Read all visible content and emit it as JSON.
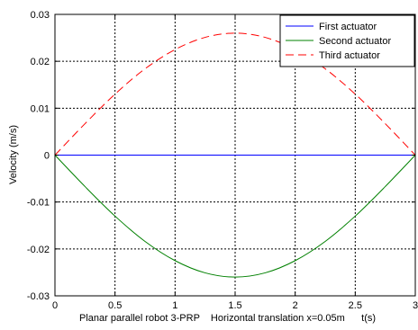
{
  "chart_data": {
    "type": "line",
    "xlabel": "Planar parallel robot 3-PRP    Horizontal translation x=0.05m      t(s)",
    "ylabel": "Velocity (m/s)",
    "xlim": [
      0,
      3
    ],
    "ylim": [
      -0.03,
      0.03
    ],
    "x_ticks": [
      0,
      0.5,
      1,
      1.5,
      2,
      2.5,
      3
    ],
    "x_tick_labels": [
      "0",
      "0.5",
      "1",
      "1.5",
      "2",
      "2.5",
      "3"
    ],
    "y_ticks": [
      0.03,
      0.02,
      0.01,
      0,
      -0.01,
      -0.02,
      -0.03
    ],
    "y_tick_labels": [
      "0.03",
      "0.02",
      "0.01",
      "0",
      "-0.01",
      "-0.02",
      "-0.03"
    ],
    "grid": true,
    "legend_position": "top-right",
    "x": [
      0,
      0.25,
      0.5,
      0.75,
      1,
      1.25,
      1.5,
      1.75,
      2,
      2.25,
      2.5,
      2.75,
      3
    ],
    "series": [
      {
        "name": "First actuator",
        "color": "#0000ff",
        "style": "solid",
        "values": [
          0,
          0,
          0,
          0,
          0,
          0,
          0,
          0,
          0,
          0,
          0,
          0,
          0
        ]
      },
      {
        "name": "Second actuator",
        "color": "#008000",
        "style": "solid",
        "values": [
          0,
          -0.0067,
          -0.013,
          -0.0184,
          -0.0225,
          -0.0251,
          -0.026,
          -0.0251,
          -0.0225,
          -0.0184,
          -0.013,
          -0.0067,
          0
        ]
      },
      {
        "name": "Third actuator",
        "color": "#ff0000",
        "style": "dashed",
        "values": [
          0,
          0.0067,
          0.013,
          0.0184,
          0.0225,
          0.0251,
          0.026,
          0.0251,
          0.0225,
          0.0184,
          0.013,
          0.0067,
          0
        ]
      }
    ]
  }
}
